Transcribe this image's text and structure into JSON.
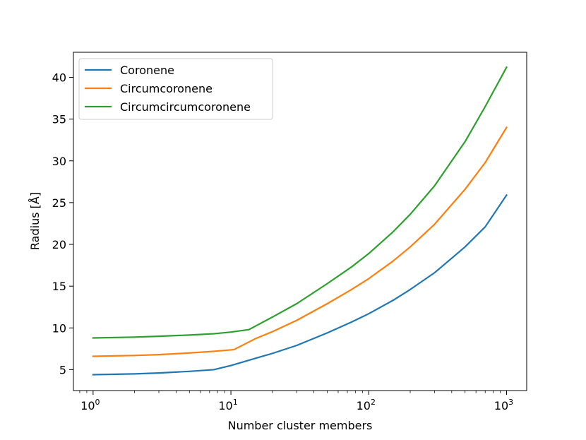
{
  "chart_data": {
    "type": "line",
    "title": "",
    "xlabel": "Number cluster members",
    "ylabel": "Radius [Å]",
    "xscale": "log",
    "xlim": [
      0.72,
      1400
    ],
    "ylim": [
      2.5,
      43.0
    ],
    "x_ticks": [
      {
        "value": 1,
        "base": "10",
        "exp": "0"
      },
      {
        "value": 10,
        "base": "10",
        "exp": "1"
      },
      {
        "value": 100,
        "base": "10",
        "exp": "2"
      },
      {
        "value": 1000,
        "base": "10",
        "exp": "3"
      }
    ],
    "y_ticks": [
      5,
      10,
      15,
      20,
      25,
      30,
      35,
      40
    ],
    "grid": false,
    "legend_position": "top-left",
    "series": [
      {
        "name": "Coronene",
        "color": "#1f77b4",
        "x": [
          1,
          2,
          3,
          5,
          7.5,
          10,
          15,
          20,
          30,
          50,
          75,
          100,
          150,
          200,
          300,
          500,
          700,
          1000
        ],
        "y": [
          4.4,
          4.5,
          4.6,
          4.8,
          5.0,
          5.5,
          6.35,
          6.95,
          7.9,
          9.4,
          10.7,
          11.7,
          13.3,
          14.6,
          16.6,
          19.7,
          22.1,
          25.9
        ]
      },
      {
        "name": "Circumcoronene",
        "color": "#ff7f0e",
        "x": [
          1,
          2,
          3,
          5,
          7.5,
          10.5,
          15,
          20,
          30,
          50,
          75,
          100,
          150,
          200,
          300,
          500,
          700,
          1000
        ],
        "y": [
          6.6,
          6.7,
          6.8,
          7.0,
          7.2,
          7.4,
          8.7,
          9.55,
          10.9,
          12.9,
          14.6,
          15.9,
          18.0,
          19.7,
          22.4,
          26.6,
          29.8,
          34.0
        ]
      },
      {
        "name": "Circumcircumcoronene",
        "color": "#2ca02c",
        "x": [
          1,
          2,
          3,
          5,
          7.5,
          10,
          13.5,
          20,
          30,
          50,
          75,
          100,
          150,
          200,
          300,
          500,
          700,
          1000
        ],
        "y": [
          8.8,
          8.9,
          9.0,
          9.15,
          9.3,
          9.5,
          9.8,
          11.3,
          12.9,
          15.3,
          17.3,
          18.9,
          21.5,
          23.6,
          27.0,
          32.3,
          36.5,
          41.2
        ]
      }
    ]
  }
}
